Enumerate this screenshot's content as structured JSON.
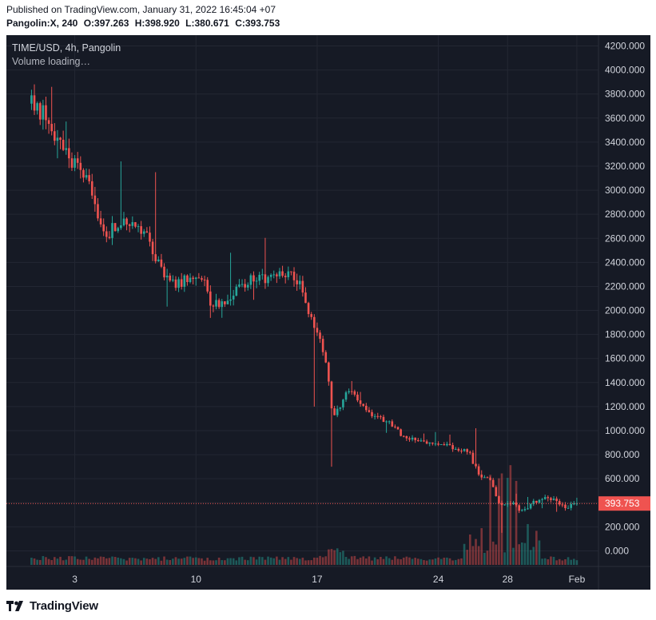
{
  "header": {
    "published": "Published on TradingView.com, January 31, 2022 16:45:04 +07",
    "ticker": "Pangolin:X, 240",
    "open": "O:397.263",
    "high": "H:398.920",
    "low": "L:380.671",
    "close": "C:393.753"
  },
  "legend": {
    "symbol": "TIME/USD, 4h, Pangolin",
    "volume_status": "Volume loading…"
  },
  "footer": {
    "brand": "TradingView"
  },
  "colors": {
    "background": "#161a25",
    "up": "#26a69a",
    "down": "#ef5350",
    "grid": "#232733",
    "text": "#d1d4dc"
  },
  "chart_data": {
    "type": "candlestick",
    "interval": "4h",
    "price_ticks": [
      "0.000",
      "200.000",
      "400.000",
      "600.000",
      "800.000",
      "1000.000",
      "1200.000",
      "1400.000",
      "1600.000",
      "1800.000",
      "2000.000",
      "2200.000",
      "2400.000",
      "2600.000",
      "2800.000",
      "3000.000",
      "3200.000",
      "3400.000",
      "3600.000",
      "3800.000",
      "4000.000",
      "4200.000"
    ],
    "y_range": [
      -130,
      4290
    ],
    "date_ticks": [
      {
        "label": "3",
        "day": 3
      },
      {
        "label": "10",
        "day": 10
      },
      {
        "label": "17",
        "day": 17
      },
      {
        "label": "24",
        "day": 24
      },
      {
        "label": "28",
        "day": 28
      },
      {
        "label": "Feb",
        "day": 32
      }
    ],
    "x_range_days": [
      -0.95,
      33.25
    ],
    "last_price": "393.753",
    "last_price_value": 393.753,
    "anchors": [
      {
        "d": 0.5,
        "p": 3720
      },
      {
        "d": 1.3,
        "p": 3620
      },
      {
        "d": 2.0,
        "p": 3420
      },
      {
        "d": 2.4,
        "p": 3300
      },
      {
        "d": 3.0,
        "p": 3200
      },
      {
        "d": 3.7,
        "p": 3100
      },
      {
        "d": 4.2,
        "p": 2880
      },
      {
        "d": 4.8,
        "p": 2620
      },
      {
        "d": 5.3,
        "p": 2700
      },
      {
        "d": 6.2,
        "p": 2760
      },
      {
        "d": 6.8,
        "p": 2700
      },
      {
        "d": 7.3,
        "p": 2560
      },
      {
        "d": 7.9,
        "p": 2360
      },
      {
        "d": 8.7,
        "p": 2220
      },
      {
        "d": 9.6,
        "p": 2260
      },
      {
        "d": 10.3,
        "p": 2320
      },
      {
        "d": 10.8,
        "p": 2080
      },
      {
        "d": 11.5,
        "p": 2060
      },
      {
        "d": 12.2,
        "p": 2150
      },
      {
        "d": 13.0,
        "p": 2260
      },
      {
        "d": 14.0,
        "p": 2260
      },
      {
        "d": 14.8,
        "p": 2300
      },
      {
        "d": 15.5,
        "p": 2330
      },
      {
        "d": 16.1,
        "p": 2180
      },
      {
        "d": 16.7,
        "p": 1900
      },
      {
        "d": 17.2,
        "p": 1730
      },
      {
        "d": 17.6,
        "p": 1470
      },
      {
        "d": 17.9,
        "p": 1100
      },
      {
        "d": 18.3,
        "p": 1210
      },
      {
        "d": 18.9,
        "p": 1350
      },
      {
        "d": 19.4,
        "p": 1260
      },
      {
        "d": 19.9,
        "p": 1160
      },
      {
        "d": 21.0,
        "p": 1080
      },
      {
        "d": 22.0,
        "p": 950
      },
      {
        "d": 23.0,
        "p": 900
      },
      {
        "d": 24.0,
        "p": 880
      },
      {
        "d": 25.0,
        "p": 860
      },
      {
        "d": 25.8,
        "p": 810
      },
      {
        "d": 26.3,
        "p": 640
      },
      {
        "d": 27.0,
        "p": 580
      },
      {
        "d": 27.6,
        "p": 380
      },
      {
        "d": 28.2,
        "p": 400
      },
      {
        "d": 28.8,
        "p": 330
      },
      {
        "d": 29.5,
        "p": 400
      },
      {
        "d": 30.3,
        "p": 440
      },
      {
        "d": 31.0,
        "p": 400
      },
      {
        "d": 31.5,
        "p": 360
      },
      {
        "d": 32.0,
        "p": 395
      }
    ],
    "first_day": 0.5,
    "last_day": 32.0,
    "candles_per_day": 6
  }
}
